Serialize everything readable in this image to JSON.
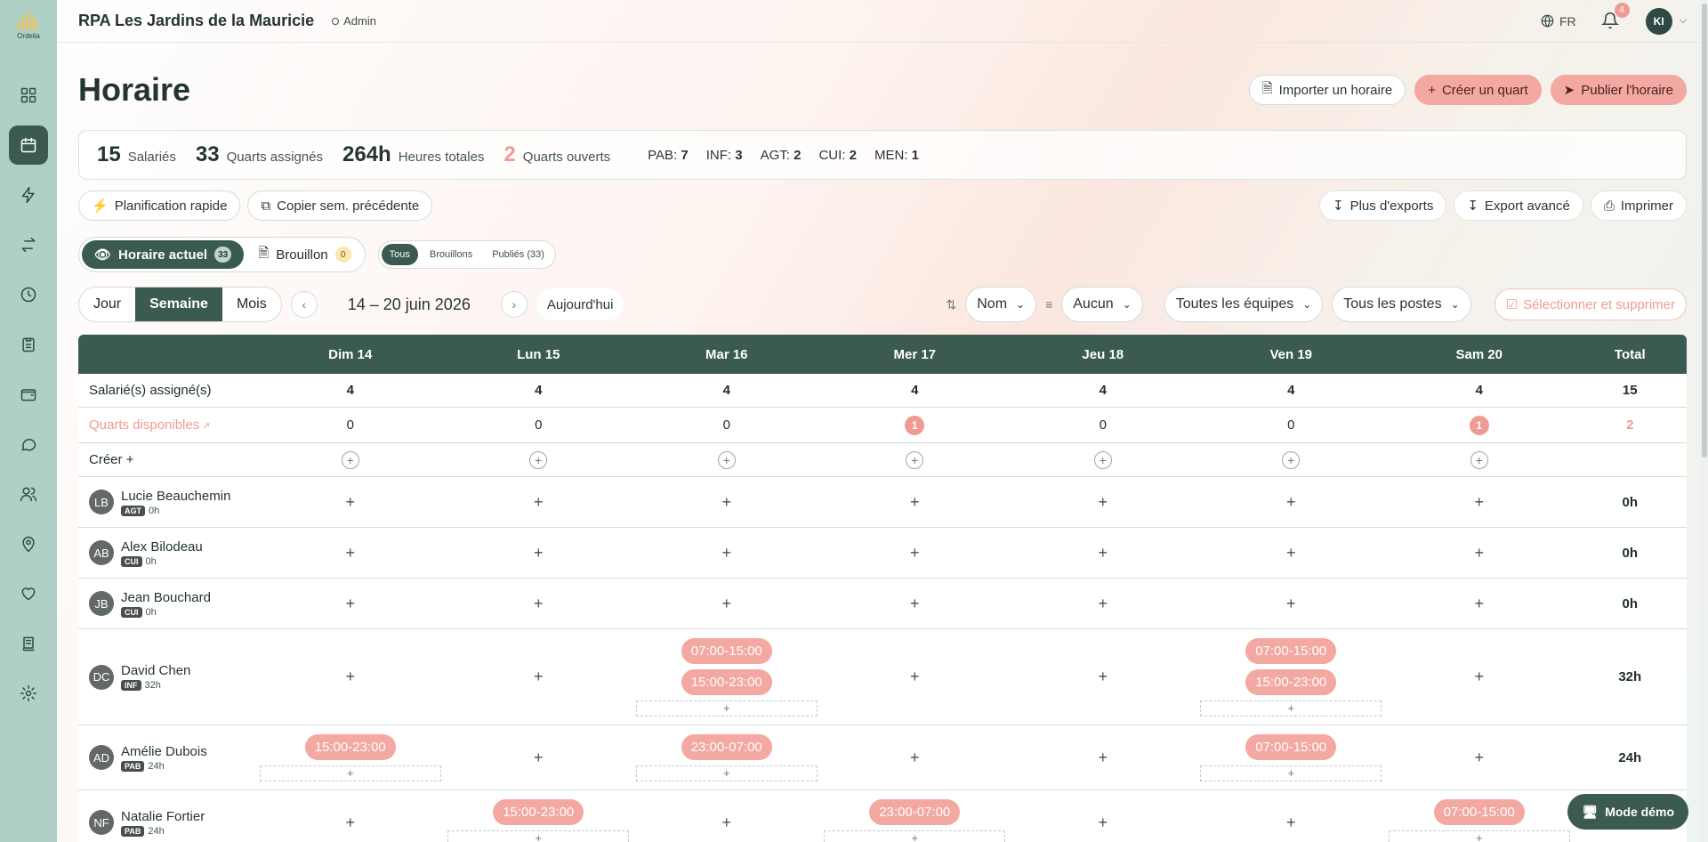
{
  "app": {
    "logo_text": "Ordelia",
    "org_name": "RPA Les Jardins de la Mauricie",
    "role": "Admin",
    "lang": "FR",
    "notif_count": "4",
    "user_initials": "KI"
  },
  "nav": [
    "dashboard-icon",
    "calendar-icon",
    "bolt-icon",
    "swap-icon",
    "clock-icon",
    "clipboard-icon",
    "wallet-icon",
    "chat-icon",
    "users-icon",
    "location-icon",
    "heart-icon",
    "ledger-icon",
    "gear-icon"
  ],
  "page": {
    "title": "Horaire",
    "import_label": "Importer un horaire",
    "create_label": "Créer un quart",
    "publish_label": "Publier l'horaire"
  },
  "stats": {
    "employees": {
      "value": "15",
      "label": "Salariés"
    },
    "assigned": {
      "value": "33",
      "label": "Quarts assignés"
    },
    "hours": {
      "value": "264h",
      "label": "Heures totales"
    },
    "open": {
      "value": "2",
      "label": "Quarts ouverts"
    },
    "roles": [
      {
        "code": "PAB:",
        "count": "7"
      },
      {
        "code": "INF:",
        "count": "3"
      },
      {
        "code": "AGT:",
        "count": "2"
      },
      {
        "code": "CUI:",
        "count": "2"
      },
      {
        "code": "MEN:",
        "count": "1"
      }
    ]
  },
  "tools": {
    "quick_plan": "Planification rapide",
    "copy_prev": "Copier sem. précédente",
    "more_exports": "Plus d'exports",
    "adv_export": "Export avancé",
    "print": "Imprimer"
  },
  "modes": {
    "current": "Horaire actuel",
    "current_count": "33",
    "draft": "Brouillon",
    "draft_count": "0"
  },
  "filter_status": {
    "all": "Tous",
    "drafts": "Brouillons",
    "published": "Publiés (33)"
  },
  "period": {
    "day": "Jour",
    "week": "Semaine",
    "month": "Mois",
    "range": "14 – 20 juin 2026",
    "today": "Aujourd'hui"
  },
  "sort": {
    "name": "Nom",
    "group": "Aucun",
    "teams": "Toutes les équipes",
    "posts": "Tous les postes",
    "select_delete": "Sélectionner et supprimer"
  },
  "grid": {
    "days": [
      "Dim 14",
      "Lun 15",
      "Mar 16",
      "Mer 17",
      "Jeu 18",
      "Ven 19",
      "Sam 20"
    ],
    "total_label": "Total",
    "assigned_label": "Salarié(s) assigné(s)",
    "assigned": [
      "4",
      "4",
      "4",
      "4",
      "4",
      "4",
      "4"
    ],
    "assigned_total": "15",
    "available_label": "Quarts disponibles",
    "available": [
      "0",
      "0",
      "0",
      "1",
      "0",
      "0",
      "1"
    ],
    "available_total": "2",
    "create_label": "Créer +",
    "employees": [
      {
        "initials": "LB",
        "name": "Lucie Beauchemin",
        "role": "AGT",
        "hours": "0h",
        "total": "0h",
        "shifts": [
          [],
          [],
          [],
          [],
          [],
          [],
          []
        ]
      },
      {
        "initials": "AB",
        "name": "Alex Bilodeau",
        "role": "CUI",
        "hours": "0h",
        "total": "0h",
        "shifts": [
          [],
          [],
          [],
          [],
          [],
          [],
          []
        ]
      },
      {
        "initials": "JB",
        "name": "Jean Bouchard",
        "role": "CUI",
        "hours": "0h",
        "total": "0h",
        "shifts": [
          [],
          [],
          [],
          [],
          [],
          [],
          []
        ]
      },
      {
        "initials": "DC",
        "name": "David Chen",
        "role": "INF",
        "hours": "32h",
        "total": "32h",
        "shifts": [
          [],
          [],
          [
            "07:00-15:00",
            "15:00-23:00"
          ],
          [],
          [],
          [
            "07:00-15:00",
            "15:00-23:00"
          ],
          []
        ]
      },
      {
        "initials": "AD",
        "name": "Amélie Dubois",
        "role": "PAB",
        "hours": "24h",
        "total": "24h",
        "shifts": [
          [
            "15:00-23:00"
          ],
          [],
          [
            "23:00-07:00"
          ],
          [],
          [],
          [
            "07:00-15:00"
          ],
          []
        ]
      },
      {
        "initials": "NF",
        "name": "Natalie Fortier",
        "role": "PAB",
        "hours": "24h",
        "total": "",
        "shifts": [
          [],
          [
            "15:00-23:00"
          ],
          [],
          [
            "23:00-07:00"
          ],
          [],
          [],
          [
            "07:00-15:00"
          ]
        ]
      }
    ]
  },
  "demo_label": "Mode démo"
}
